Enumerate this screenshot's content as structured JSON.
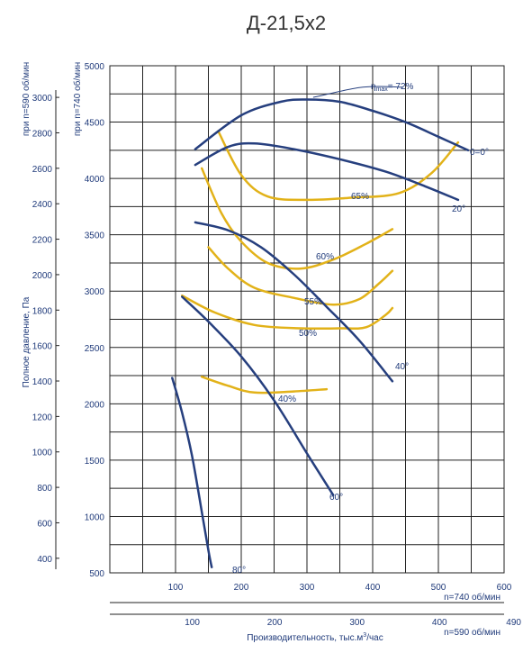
{
  "chart_data": {
    "type": "line",
    "title": "Д-21,5х2",
    "x_axis_740": {
      "label": "n=740 об/мин",
      "ticks": [
        100,
        200,
        300,
        400,
        500,
        600
      ]
    },
    "x_axis_590": {
      "label": "n=590 об/мин",
      "ticks": [
        100,
        200,
        300,
        400,
        490
      ],
      "xlabel_main": "Производительность, тыс.м",
      "xlabel_sup": "3",
      "xlabel_tail": "/час"
    },
    "y_axis_740": {
      "label": "при n=740 об/мин",
      "ylim": [
        500,
        5000
      ],
      "ticks": [
        500,
        1000,
        1500,
        2000,
        2500,
        3000,
        3500,
        4000,
        4500,
        5000
      ]
    },
    "y_axis_590": {
      "label": "при n=590 об/мин",
      "ticks": [
        400,
        600,
        800,
        1000,
        1200,
        1400,
        1600,
        1800,
        2000,
        2200,
        2400,
        2600,
        2800,
        3000
      ]
    },
    "ylabel": "Полное давление,  Па",
    "grid": true,
    "pressure_curves": [
      {
        "label": "0=0°",
        "points": [
          [
            130,
            4260
          ],
          [
            200,
            4560
          ],
          [
            260,
            4680
          ],
          [
            300,
            4700
          ],
          [
            350,
            4680
          ],
          [
            400,
            4600
          ],
          [
            450,
            4500
          ],
          [
            500,
            4370
          ],
          [
            545,
            4250
          ]
        ]
      },
      {
        "label": "20°",
        "points": [
          [
            130,
            4120
          ],
          [
            180,
            4280
          ],
          [
            220,
            4310
          ],
          [
            280,
            4260
          ],
          [
            350,
            4170
          ],
          [
            420,
            4060
          ],
          [
            480,
            3930
          ],
          [
            530,
            3810
          ]
        ]
      },
      {
        "label": "40°",
        "points": [
          [
            130,
            3610
          ],
          [
            180,
            3540
          ],
          [
            230,
            3390
          ],
          [
            280,
            3150
          ],
          [
            330,
            2860
          ],
          [
            380,
            2560
          ],
          [
            430,
            2200
          ]
        ]
      },
      {
        "label": "60°",
        "points": [
          [
            110,
            2950
          ],
          [
            150,
            2730
          ],
          [
            200,
            2420
          ],
          [
            250,
            2030
          ],
          [
            300,
            1560
          ],
          [
            340,
            1190
          ]
        ]
      },
      {
        "label": "80°",
        "points": [
          [
            95,
            2230
          ],
          [
            110,
            1920
          ],
          [
            125,
            1540
          ],
          [
            140,
            1040
          ],
          [
            150,
            700
          ],
          [
            155,
            550
          ]
        ]
      }
    ],
    "efficiency_curves": [
      {
        "label": "ηmax= 72%",
        "points": [
          [
            310,
            4720
          ],
          [
            385,
            4810
          ],
          [
            445,
            4810
          ]
        ]
      },
      {
        "label": "65%",
        "points": [
          [
            165,
            4420
          ],
          [
            200,
            4030
          ],
          [
            240,
            3840
          ],
          [
            300,
            3810
          ],
          [
            370,
            3830
          ],
          [
            440,
            3870
          ],
          [
            490,
            4050
          ],
          [
            530,
            4320
          ]
        ]
      },
      {
        "label": "60%",
        "points": [
          [
            140,
            4090
          ],
          [
            170,
            3690
          ],
          [
            200,
            3440
          ],
          [
            240,
            3250
          ],
          [
            290,
            3200
          ],
          [
            340,
            3280
          ],
          [
            390,
            3420
          ],
          [
            430,
            3550
          ]
        ]
      },
      {
        "label": "55%",
        "points": [
          [
            150,
            3390
          ],
          [
            180,
            3200
          ],
          [
            220,
            3030
          ],
          [
            280,
            2940
          ],
          [
            340,
            2880
          ],
          [
            380,
            2930
          ],
          [
            410,
            3070
          ],
          [
            430,
            3180
          ]
        ]
      },
      {
        "label": "50%",
        "points": [
          [
            110,
            2960
          ],
          [
            160,
            2810
          ],
          [
            220,
            2700
          ],
          [
            290,
            2670
          ],
          [
            350,
            2670
          ],
          [
            390,
            2680
          ],
          [
            420,
            2790
          ],
          [
            430,
            2850
          ]
        ]
      },
      {
        "label": "40%",
        "points": [
          [
            140,
            2240
          ],
          [
            180,
            2160
          ],
          [
            220,
            2100
          ],
          [
            280,
            2110
          ],
          [
            330,
            2130
          ]
        ]
      }
    ],
    "labels": {
      "eta_max": "max",
      "eta_pct": "= 72%",
      "eff_65": "65%",
      "eff_60": "60%",
      "eff_55": "55%",
      "eff_50": "50%",
      "eff_40": "40%",
      "ang_0": "0=0°",
      "ang_20": "20°",
      "ang_40": "40°",
      "ang_60": "60°",
      "ang_80": "80°"
    },
    "colors": {
      "pressure": "#263f7e",
      "efficiency": "#e2b219",
      "grid": "#222222",
      "text": "#1f3a7a"
    }
  }
}
